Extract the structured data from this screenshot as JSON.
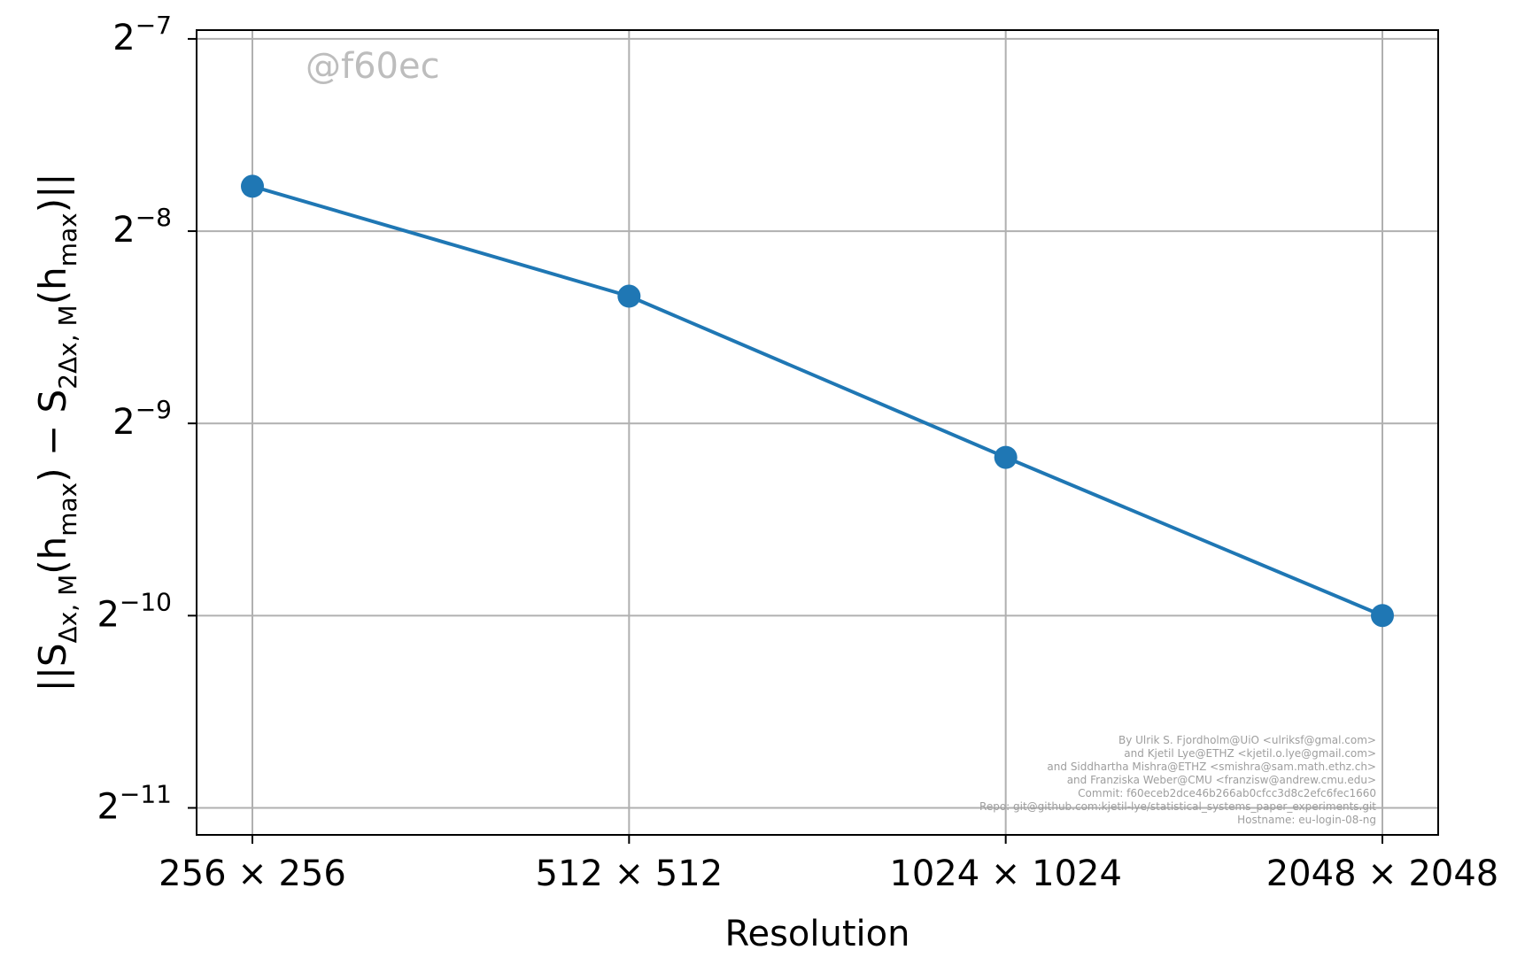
{
  "chart_data": {
    "type": "line",
    "categories": [
      "256 × 256",
      "512 × 512",
      "1024 × 1024",
      "2048 × 2048"
    ],
    "series": [
      {
        "values": [
          0.004592,
          0.00309,
          0.001728,
          0.000977
        ]
      }
    ],
    "xlabel": "Resolution",
    "ylabel": {
      "prefix": "||S",
      "sub1": "Δx, M",
      "mid": "(h",
      "sub_max1": "max",
      "minus": ") − S",
      "sub2": "2Δx, M",
      "mid2": "(h",
      "sub_max2": "max",
      "suffix": ")||"
    },
    "yscale": "log2",
    "ylim": [
      0.000443,
      0.008064
    ],
    "y_ticks": [
      {
        "base": "2",
        "exp": "−7",
        "value": 0.0078125
      },
      {
        "base": "2",
        "exp": "−8",
        "value": 0.00390625
      },
      {
        "base": "2",
        "exp": "−9",
        "value": 0.001953125
      },
      {
        "base": "2",
        "exp": "−10",
        "value": 0.0009765625
      },
      {
        "base": "2",
        "exp": "−11",
        "value": 0.00048828125
      }
    ],
    "grid": true,
    "colors": {
      "series": "#1f77b4",
      "grid": "#b0b0b0",
      "watermark": "#bdbdbd",
      "credit": "#9e9e9e"
    }
  },
  "watermark": "@f60ec",
  "credits": [
    "By Ulrik S. Fjordholm@UiO <ulriksf@gmal.com>",
    "and Kjetil Lye@ETHZ <kjetil.o.lye@gmail.com>",
    "and Siddhartha Mishra@ETHZ <smishra@sam.math.ethz.ch>",
    "and Franziska Weber@CMU <franzisw@andrew.cmu.edu>",
    "Commit: f60eceb2dce46b266ab0cfcc3d8c2efc6fec1660",
    "Repo: git@github.com:kjetil-lye/statistical_systems_paper_experiments.git",
    "Hostname: eu-login-08-ng"
  ]
}
